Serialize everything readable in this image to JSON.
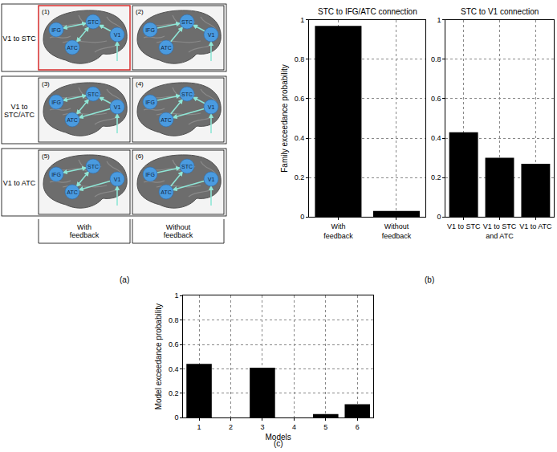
{
  "panel_labels": {
    "a": "(a)",
    "b": "(b)",
    "c": "(c)"
  },
  "diagram": {
    "rows": [
      "V1 to STC",
      "V1 to STC/ATC",
      "V1 to ATC"
    ],
    "columns": [
      "With feedback",
      "Without feedback"
    ],
    "nodes": [
      "IFG",
      "STC",
      "ATC",
      "V1"
    ],
    "models": [
      {
        "label": "(1)",
        "v1_targets": [
          "STC"
        ],
        "feedback": true,
        "highlight": true
      },
      {
        "label": "(2)",
        "v1_targets": [
          "STC"
        ],
        "feedback": false,
        "highlight": false
      },
      {
        "label": "(3)",
        "v1_targets": [
          "STC",
          "ATC"
        ],
        "feedback": true,
        "highlight": false
      },
      {
        "label": "(4)",
        "v1_targets": [
          "STC",
          "ATC"
        ],
        "feedback": false,
        "highlight": false
      },
      {
        "label": "(5)",
        "v1_targets": [
          "ATC"
        ],
        "feedback": true,
        "highlight": false
      },
      {
        "label": "(6)",
        "v1_targets": [
          "ATC"
        ],
        "feedback": false,
        "highlight": false
      }
    ]
  },
  "chart_data": [
    {
      "type": "bar",
      "title": "STC to IFG/ATC connection",
      "ylabel": "Family exceedance probability",
      "categories": [
        "With feedback",
        "Without feedback"
      ],
      "values": [
        0.97,
        0.03
      ],
      "color": "#000000",
      "ylim": [
        0,
        1
      ],
      "yticks": [
        0,
        0.2,
        0.4,
        0.6,
        0.8,
        1
      ],
      "grid": true
    },
    {
      "type": "bar",
      "title": "STC to V1 connection",
      "categories": [
        "V1 to STC",
        "V1 to STC and ATC",
        "V1 to ATC"
      ],
      "values": [
        0.43,
        0.3,
        0.27
      ],
      "color": "#000000",
      "ylim": [
        0,
        1
      ],
      "yticks": [
        0,
        0.2,
        0.4,
        0.6,
        0.8,
        1
      ],
      "grid": true
    },
    {
      "type": "bar",
      "xlabel": "Models",
      "ylabel": "Model exceedance probability",
      "categories": [
        "1",
        "2",
        "3",
        "4",
        "5",
        "6"
      ],
      "values": [
        0.44,
        0,
        0.41,
        0,
        0.03,
        0.11
      ],
      "color": "#000000",
      "ylim": [
        0,
        1
      ],
      "yticks": [
        0,
        0.2,
        0.4,
        0.6,
        0.8,
        1
      ],
      "grid": true
    }
  ]
}
